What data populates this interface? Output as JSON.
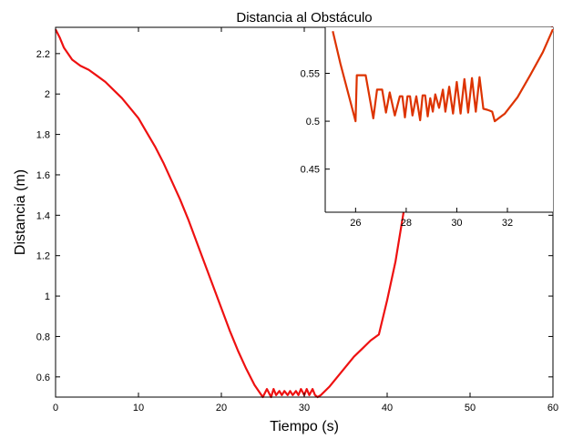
{
  "chart_data": [
    {
      "id": "main",
      "type": "line",
      "title": "Distancia al Obstáculo",
      "xlabel": "Tiempo (s)",
      "ylabel": "Distancia (m)",
      "xlim": [
        0,
        60
      ],
      "ylim": [
        0.5,
        2.33
      ],
      "xticks": [
        0,
        10,
        20,
        30,
        40,
        50,
        60
      ],
      "yticks": [
        0.6,
        0.8,
        1,
        1.2,
        1.4,
        1.6,
        1.8,
        2,
        2.2
      ],
      "ytick_labels": [
        "0.6",
        "0.8",
        "1",
        "1.2",
        "1.4",
        "1.6",
        "1.8",
        "2",
        "2.2"
      ],
      "grid": false,
      "color": "#ee1111",
      "series": [
        {
          "x": [
            0,
            0.5,
            1,
            2,
            3,
            4,
            5,
            6,
            7,
            8,
            9,
            10,
            11,
            12,
            13,
            14,
            15,
            16,
            17,
            18,
            19,
            20,
            21,
            22,
            23,
            24,
            25,
            25.5,
            26,
            26.3,
            26.6,
            27,
            27.3,
            27.6,
            28,
            28.3,
            28.6,
            29,
            29.3,
            29.6,
            30,
            30.3,
            30.6,
            31,
            31.3,
            31.6,
            32,
            33,
            34,
            35,
            36,
            37,
            38,
            39,
            40,
            41,
            42,
            43,
            44,
            45,
            46,
            47,
            48,
            49,
            50,
            51,
            52,
            53,
            54,
            55,
            56,
            57,
            58,
            59,
            60
          ],
          "y": [
            2.32,
            2.28,
            2.23,
            2.17,
            2.14,
            2.12,
            2.09,
            2.06,
            2.02,
            1.98,
            1.93,
            1.88,
            1.81,
            1.74,
            1.66,
            1.57,
            1.48,
            1.38,
            1.27,
            1.16,
            1.05,
            0.94,
            0.83,
            0.73,
            0.64,
            0.56,
            0.5,
            0.54,
            0.5,
            0.54,
            0.51,
            0.53,
            0.51,
            0.53,
            0.51,
            0.53,
            0.51,
            0.53,
            0.51,
            0.54,
            0.51,
            0.54,
            0.51,
            0.54,
            0.51,
            0.5,
            0.51,
            0.55,
            0.6,
            0.65,
            0.7,
            0.74,
            0.78,
            0.81,
            0.98,
            1.17,
            1.42,
            1.63,
            1.77,
            1.88,
            1.96,
            2.02,
            2.07,
            2.11,
            2.15,
            2.18,
            2.21,
            2.23,
            2.25,
            2.27,
            2.29,
            2.3,
            2.31,
            2.32,
            2.33
          ]
        }
      ]
    },
    {
      "id": "inset",
      "type": "line",
      "xlim": [
        24.8,
        33.8
      ],
      "ylim": [
        0.405,
        0.598
      ],
      "xticks": [
        26,
        28,
        30,
        32
      ],
      "yticks": [
        0.45,
        0.5,
        0.55
      ],
      "ytick_labels": [
        "0.45",
        "0.5",
        "0.55"
      ],
      "grid": false,
      "color": "#dd3300",
      "series": [
        {
          "x": [
            25.1,
            25.4,
            25.7,
            26.0,
            26.05,
            26.15,
            26.4,
            26.7,
            26.85,
            27.05,
            27.2,
            27.35,
            27.55,
            27.75,
            27.85,
            27.95,
            28.05,
            28.15,
            28.25,
            28.4,
            28.55,
            28.65,
            28.75,
            28.85,
            28.95,
            29.05,
            29.15,
            29.3,
            29.45,
            29.55,
            29.7,
            29.85,
            30.0,
            30.15,
            30.3,
            30.45,
            30.6,
            30.75,
            30.9,
            31.05,
            31.2,
            31.3,
            31.4,
            31.5,
            31.9,
            32.4,
            32.9,
            33.4,
            33.8
          ],
          "y": [
            0.594,
            0.56,
            0.53,
            0.5,
            0.548,
            0.548,
            0.548,
            0.503,
            0.533,
            0.533,
            0.509,
            0.53,
            0.506,
            0.526,
            0.526,
            0.504,
            0.526,
            0.526,
            0.506,
            0.526,
            0.501,
            0.527,
            0.527,
            0.505,
            0.524,
            0.51,
            0.528,
            0.514,
            0.533,
            0.51,
            0.536,
            0.508,
            0.541,
            0.508,
            0.544,
            0.509,
            0.545,
            0.51,
            0.546,
            0.513,
            0.512,
            0.511,
            0.51,
            0.5,
            0.508,
            0.525,
            0.548,
            0.572,
            0.596
          ]
        }
      ]
    }
  ]
}
